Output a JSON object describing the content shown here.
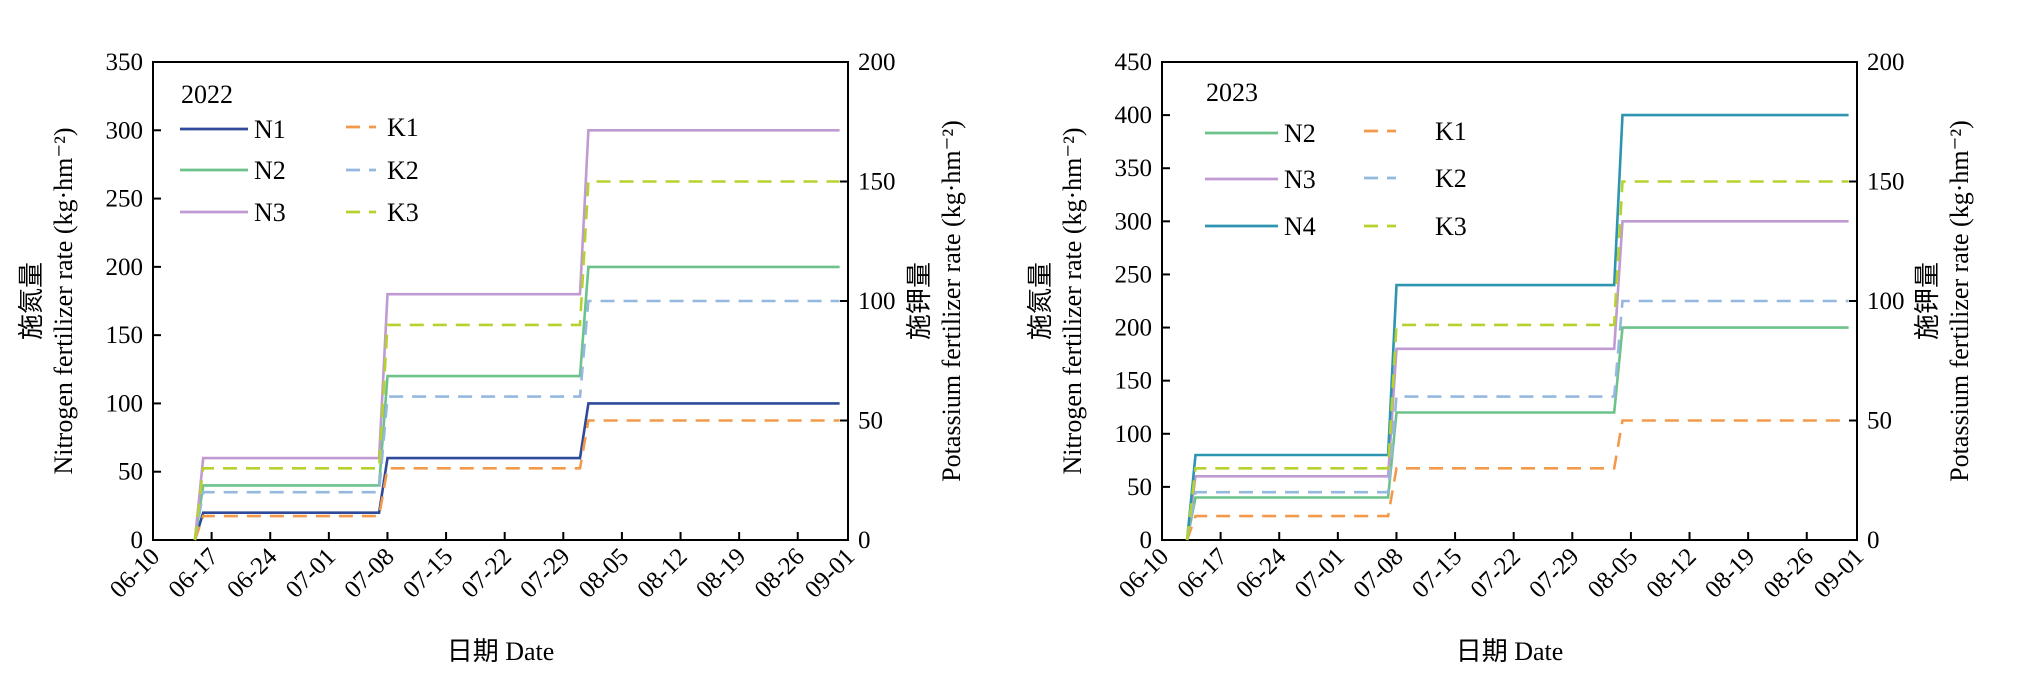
{
  "chart_data": [
    {
      "type": "line",
      "panel_label": "2022",
      "xlabel": "日期 Date",
      "ylabel_left": "施氮量",
      "ylabel_left_en": "Nitrogen fertilizer rate (kg·hm⁻²)",
      "ylabel_right": "施钾量",
      "ylabel_right_en": "Potassium fertilizer rate (kg·hm⁻²)",
      "x_ticks": [
        "06-10",
        "06-17",
        "06-24",
        "07-01",
        "07-08",
        "07-15",
        "07-22",
        "07-29",
        "08-05",
        "08-12",
        "08-19",
        "08-26",
        "09-01"
      ],
      "xlim": [
        "06-10",
        "09-01"
      ],
      "ylim_left": [
        0,
        350
      ],
      "yticks_left": [
        0,
        50,
        100,
        150,
        200,
        250,
        300,
        350
      ],
      "ylim_right": [
        0,
        200
      ],
      "yticks_right": [
        0,
        50,
        100,
        150,
        200
      ],
      "grid": false,
      "legend_placement": "top-left",
      "series": [
        {
          "name": "N1",
          "axis": "left",
          "dash": false,
          "color": "#2f4a9a",
          "points": [
            [
              "06-15",
              0
            ],
            [
              "06-16",
              20
            ],
            [
              "07-07",
              20
            ],
            [
              "07-08",
              60
            ],
            [
              "07-31",
              60
            ],
            [
              "08-01",
              100
            ],
            [
              "08-31",
              100
            ]
          ]
        },
        {
          "name": "N2",
          "axis": "left",
          "dash": false,
          "color": "#6cc28a",
          "points": [
            [
              "06-15",
              0
            ],
            [
              "06-16",
              40
            ],
            [
              "07-07",
              40
            ],
            [
              "07-08",
              120
            ],
            [
              "07-31",
              120
            ],
            [
              "08-01",
              200
            ],
            [
              "08-31",
              200
            ]
          ]
        },
        {
          "name": "N3",
          "axis": "left",
          "dash": false,
          "color": "#c09ad2",
          "points": [
            [
              "06-15",
              0
            ],
            [
              "06-16",
              60
            ],
            [
              "07-07",
              60
            ],
            [
              "07-08",
              180
            ],
            [
              "07-31",
              180
            ],
            [
              "08-01",
              300
            ],
            [
              "08-31",
              300
            ]
          ]
        },
        {
          "name": "K1",
          "axis": "right",
          "dash": true,
          "color": "#f39a4a",
          "points": [
            [
              "06-15",
              0
            ],
            [
              "06-16",
              10
            ],
            [
              "07-07",
              10
            ],
            [
              "07-08",
              30
            ],
            [
              "07-31",
              30
            ],
            [
              "08-01",
              50
            ],
            [
              "08-31",
              50
            ]
          ]
        },
        {
          "name": "K2",
          "axis": "right",
          "dash": true,
          "color": "#95b8df",
          "points": [
            [
              "06-15",
              0
            ],
            [
              "06-16",
              20
            ],
            [
              "07-07",
              20
            ],
            [
              "07-08",
              60
            ],
            [
              "07-31",
              60
            ],
            [
              "08-01",
              100
            ],
            [
              "08-31",
              100
            ]
          ]
        },
        {
          "name": "K3",
          "axis": "right",
          "dash": true,
          "color": "#b6d22e",
          "points": [
            [
              "06-15",
              0
            ],
            [
              "06-16",
              30
            ],
            [
              "07-07",
              30
            ],
            [
              "07-08",
              90
            ],
            [
              "07-31",
              90
            ],
            [
              "08-01",
              150
            ],
            [
              "08-31",
              150
            ]
          ]
        }
      ]
    },
    {
      "type": "line",
      "panel_label": "2023",
      "xlabel": "日期 Date",
      "ylabel_left": "施氮量",
      "ylabel_left_en": "Nitrogen fertilizer rate (kg·hm⁻²)",
      "ylabel_right": "施钾量",
      "ylabel_right_en": "Potassium fertilizer rate (kg·hm⁻²)",
      "x_ticks": [
        "06-10",
        "06-17",
        "06-24",
        "07-01",
        "07-08",
        "07-15",
        "07-22",
        "07-29",
        "08-05",
        "08-12",
        "08-19",
        "08-26",
        "09-01"
      ],
      "xlim": [
        "06-10",
        "09-01"
      ],
      "ylim_left": [
        0,
        450
      ],
      "yticks_left": [
        0,
        50,
        100,
        150,
        200,
        250,
        300,
        350,
        400,
        450
      ],
      "ylim_right": [
        0,
        200
      ],
      "yticks_right": [
        0,
        50,
        100,
        150,
        200
      ],
      "grid": false,
      "legend_placement": "top-left",
      "series": [
        {
          "name": "N2",
          "axis": "left",
          "dash": false,
          "color": "#6cc28a",
          "points": [
            [
              "06-13",
              0
            ],
            [
              "06-14",
              40
            ],
            [
              "07-07",
              40
            ],
            [
              "07-08",
              120
            ],
            [
              "08-03",
              120
            ],
            [
              "08-04",
              200
            ],
            [
              "08-31",
              200
            ]
          ]
        },
        {
          "name": "N3",
          "axis": "left",
          "dash": false,
          "color": "#c09ad2",
          "points": [
            [
              "06-13",
              0
            ],
            [
              "06-14",
              60
            ],
            [
              "07-07",
              60
            ],
            [
              "07-08",
              180
            ],
            [
              "08-03",
              180
            ],
            [
              "08-04",
              300
            ],
            [
              "08-31",
              300
            ]
          ]
        },
        {
          "name": "N4",
          "axis": "left",
          "dash": false,
          "color": "#2e95b0",
          "points": [
            [
              "06-13",
              0
            ],
            [
              "06-14",
              80
            ],
            [
              "07-07",
              80
            ],
            [
              "07-08",
              240
            ],
            [
              "08-03",
              240
            ],
            [
              "08-04",
              400
            ],
            [
              "08-31",
              400
            ]
          ]
        },
        {
          "name": "K1",
          "axis": "right",
          "dash": true,
          "color": "#f39a4a",
          "points": [
            [
              "06-13",
              0
            ],
            [
              "06-14",
              10
            ],
            [
              "07-07",
              10
            ],
            [
              "07-08",
              30
            ],
            [
              "08-03",
              30
            ],
            [
              "08-04",
              50
            ],
            [
              "08-31",
              50
            ]
          ]
        },
        {
          "name": "K2",
          "axis": "right",
          "dash": true,
          "color": "#95b8df",
          "points": [
            [
              "06-13",
              0
            ],
            [
              "06-14",
              20
            ],
            [
              "07-07",
              20
            ],
            [
              "07-08",
              60
            ],
            [
              "08-03",
              60
            ],
            [
              "08-04",
              100
            ],
            [
              "08-31",
              100
            ]
          ]
        },
        {
          "name": "K3",
          "axis": "right",
          "dash": true,
          "color": "#b6d22e",
          "points": [
            [
              "06-13",
              0
            ],
            [
              "06-14",
              30
            ],
            [
              "07-07",
              30
            ],
            [
              "07-08",
              90
            ],
            [
              "08-03",
              90
            ],
            [
              "08-04",
              150
            ],
            [
              "08-31",
              150
            ]
          ]
        }
      ]
    }
  ]
}
